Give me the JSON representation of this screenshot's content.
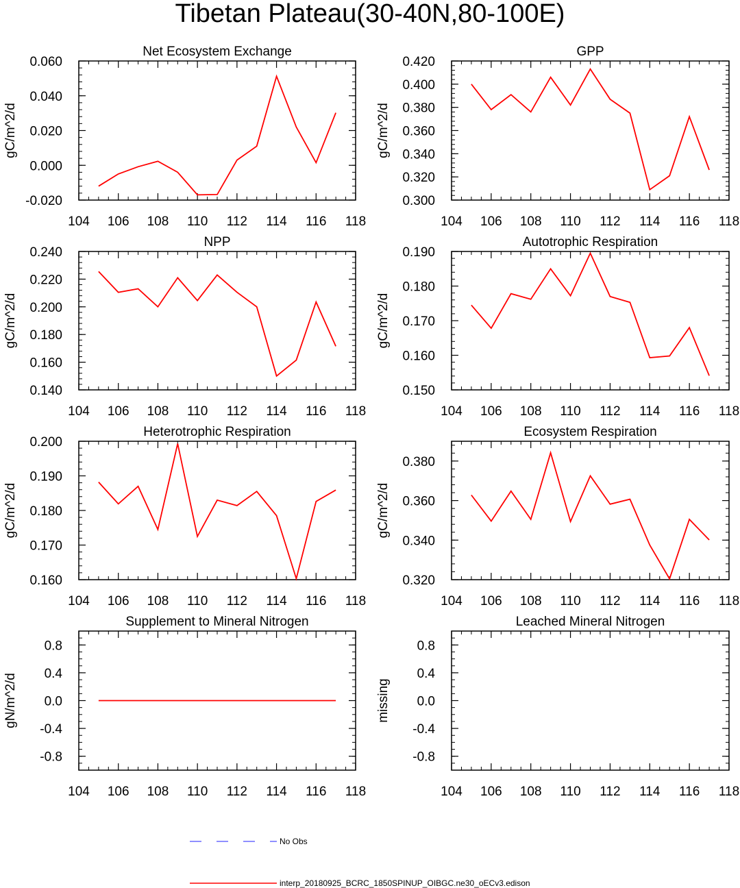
{
  "title": "Tibetan Plateau(30-40N,80-100E)",
  "colors": {
    "model": "#ff0000",
    "obs": "#6a6aff",
    "axis": "#000000"
  },
  "legend": {
    "obs_label": "No Obs",
    "model_label": "interp_20180925_BCRC_1850SPINUP_OIBGC.ne30_oECv3.edison"
  },
  "chart_data": [
    {
      "type": "line",
      "title": "Net Ecosystem Exchange",
      "ylabel": "gC/m^2/d",
      "xlim": [
        104,
        118
      ],
      "ylim": [
        -0.02,
        0.06
      ],
      "xticks": [
        104,
        106,
        108,
        110,
        112,
        114,
        116,
        118
      ],
      "yticks": [
        "-0.020",
        "0.000",
        "0.020",
        "0.040",
        "0.060"
      ],
      "yminor": 0.004,
      "x": [
        105,
        106,
        107,
        108,
        109,
        110,
        111,
        112,
        113,
        114,
        115,
        116,
        117
      ],
      "series": [
        {
          "name": "model",
          "values": [
            -0.012,
            -0.005,
            -0.0008,
            0.0023,
            -0.004,
            -0.017,
            -0.0168,
            0.003,
            0.011,
            0.0512,
            0.022,
            0.0015,
            0.0302
          ]
        }
      ]
    },
    {
      "type": "line",
      "title": "GPP",
      "ylabel": "gC/m^2/d",
      "xlim": [
        104,
        118
      ],
      "ylim": [
        0.3,
        0.42
      ],
      "xticks": [
        104,
        106,
        108,
        110,
        112,
        114,
        116,
        118
      ],
      "yticks": [
        "0.300",
        "0.320",
        "0.340",
        "0.360",
        "0.380",
        "0.400",
        "0.420"
      ],
      "yminor": 0.004,
      "x": [
        105,
        106,
        107,
        108,
        109,
        110,
        111,
        112,
        113,
        114,
        115,
        116,
        117
      ],
      "series": [
        {
          "name": "model",
          "values": [
            0.4,
            0.378,
            0.391,
            0.376,
            0.406,
            0.382,
            0.413,
            0.387,
            0.375,
            0.309,
            0.321,
            0.372,
            0.326
          ]
        }
      ]
    },
    {
      "type": "line",
      "title": "NPP",
      "ylabel": "gC/m^2/d",
      "xlim": [
        104,
        118
      ],
      "ylim": [
        0.14,
        0.24
      ],
      "xticks": [
        104,
        106,
        108,
        110,
        112,
        114,
        116,
        118
      ],
      "yticks": [
        "0.140",
        "0.160",
        "0.180",
        "0.200",
        "0.220",
        "0.240"
      ],
      "yminor": 0.004,
      "x": [
        105,
        106,
        107,
        108,
        109,
        110,
        111,
        112,
        113,
        114,
        115,
        116,
        117
      ],
      "series": [
        {
          "name": "model",
          "values": [
            0.2255,
            0.2105,
            0.213,
            0.2,
            0.221,
            0.2045,
            0.223,
            0.2105,
            0.2,
            0.15,
            0.1615,
            0.2035,
            0.1715
          ]
        }
      ]
    },
    {
      "type": "line",
      "title": "Autotrophic Respiration",
      "ylabel": "gC/m^2/d",
      "xlim": [
        104,
        118
      ],
      "ylim": [
        0.15,
        0.19
      ],
      "xticks": [
        104,
        106,
        108,
        110,
        112,
        114,
        116,
        118
      ],
      "yticks": [
        "0.150",
        "0.160",
        "0.170",
        "0.180",
        "0.190"
      ],
      "yminor": 0.002,
      "x": [
        105,
        106,
        107,
        108,
        109,
        110,
        111,
        112,
        113,
        114,
        115,
        116,
        117
      ],
      "series": [
        {
          "name": "model",
          "values": [
            0.1745,
            0.1678,
            0.1778,
            0.1762,
            0.185,
            0.1772,
            0.1895,
            0.177,
            0.1753,
            0.1593,
            0.1598,
            0.168,
            0.1541
          ]
        }
      ]
    },
    {
      "type": "line",
      "title": "Heterotrophic Respiration",
      "ylabel": "gC/m^2/d",
      "xlim": [
        104,
        118
      ],
      "ylim": [
        0.16,
        0.2
      ],
      "xticks": [
        104,
        106,
        108,
        110,
        112,
        114,
        116,
        118
      ],
      "yticks": [
        "0.160",
        "0.170",
        "0.180",
        "0.190",
        "0.200"
      ],
      "yminor": 0.002,
      "x": [
        105,
        106,
        107,
        108,
        109,
        110,
        111,
        112,
        113,
        114,
        115,
        116,
        117
      ],
      "series": [
        {
          "name": "model",
          "values": [
            0.1882,
            0.1819,
            0.187,
            0.1745,
            0.1993,
            0.1725,
            0.183,
            0.1814,
            0.1855,
            0.1785,
            0.1603,
            0.1826,
            0.1859
          ]
        }
      ]
    },
    {
      "type": "line",
      "title": "Ecosystem Respiration",
      "ylabel": "gC/m^2/d",
      "xlim": [
        104,
        118
      ],
      "ylim": [
        0.32,
        0.39
      ],
      "xticks": [
        104,
        106,
        108,
        110,
        112,
        114,
        116,
        118
      ],
      "yticks": [
        "0.320",
        "0.340",
        "0.360",
        "0.380"
      ],
      "yminor": 0.004,
      "x": [
        105,
        106,
        107,
        108,
        109,
        110,
        111,
        112,
        113,
        114,
        115,
        116,
        117
      ],
      "series": [
        {
          "name": "model",
          "values": [
            0.3628,
            0.3496,
            0.3648,
            0.3505,
            0.3842,
            0.3494,
            0.3725,
            0.3582,
            0.3607,
            0.3375,
            0.3204,
            0.3505,
            0.3401
          ]
        }
      ]
    },
    {
      "type": "line",
      "title": "Supplement to Mineral Nitrogen",
      "ylabel": "gN/m^2/d",
      "xlim": [
        104,
        118
      ],
      "ylim": [
        -1.0,
        1.0
      ],
      "xticks": [
        104,
        106,
        108,
        110,
        112,
        114,
        116,
        118
      ],
      "yticks": [
        "-0.8",
        "-0.4",
        "0.0",
        "0.4",
        "0.8"
      ],
      "yminor": 0.1,
      "x": [
        105,
        106,
        107,
        108,
        109,
        110,
        111,
        112,
        113,
        114,
        115,
        116,
        117
      ],
      "series": [
        {
          "name": "model",
          "values": [
            0,
            0,
            0,
            0,
            0,
            0,
            0,
            0,
            0,
            0,
            0,
            0,
            0
          ]
        }
      ]
    },
    {
      "type": "line",
      "title": "Leached Mineral Nitrogen",
      "ylabel": "missing",
      "xlim": [
        104,
        118
      ],
      "ylim": [
        -1.0,
        1.0
      ],
      "xticks": [
        104,
        106,
        108,
        110,
        112,
        114,
        116,
        118
      ],
      "yticks": [
        "-0.8",
        "-0.4",
        "0.0",
        "0.4",
        "0.8"
      ],
      "yminor": 0.1,
      "x": [],
      "series": []
    }
  ]
}
